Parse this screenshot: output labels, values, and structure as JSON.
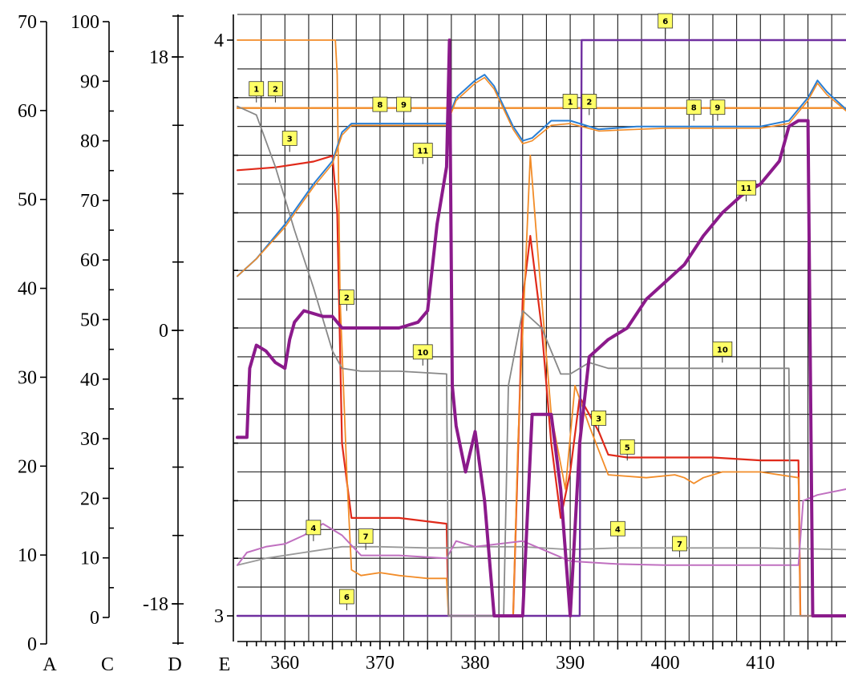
{
  "chart_data": {
    "type": "line",
    "x_label": "",
    "x_ticks": [
      "360",
      "370",
      "380",
      "390",
      "400",
      "410"
    ],
    "xlim": [
      355,
      419
    ],
    "grid": true,
    "axes": [
      {
        "id": "A",
        "label": "A",
        "ticks": [
          "0",
          "10",
          "20",
          "30",
          "40",
          "50",
          "60",
          "70"
        ],
        "range": [
          0,
          70
        ]
      },
      {
        "id": "C",
        "label": "C",
        "ticks": [
          "0",
          "10",
          "20",
          "30",
          "40",
          "50",
          "60",
          "70",
          "80",
          "90",
          "100"
        ],
        "range": [
          0,
          100
        ]
      },
      {
        "id": "D",
        "label": "D",
        "ticks": [
          "-18",
          "0",
          "18"
        ],
        "range": [
          -18,
          18
        ]
      },
      {
        "id": "E",
        "label": "E",
        "ticks": [
          "3",
          "4"
        ],
        "range": [
          3,
          4
        ]
      }
    ],
    "series": [
      {
        "name": "1",
        "color": "#f28c28",
        "width": 2.2,
        "points": [
          [
            355,
            0.882
          ],
          [
            413,
            0.882
          ],
          [
            419,
            0.882
          ]
        ]
      },
      {
        "name": "2",
        "color": "#f28c28",
        "width": 2.2,
        "points": [
          [
            355,
            0.882
          ],
          [
            419,
            0.882
          ]
        ]
      },
      {
        "name": "3",
        "color": "#e02a1a",
        "width": 2.2,
        "points": [
          [
            355,
            0.774
          ],
          [
            359,
            0.779
          ],
          [
            363,
            0.789
          ],
          [
            365,
            0.799
          ],
          [
            365.5,
            0.7
          ],
          [
            366,
            0.3
          ],
          [
            367,
            0.17
          ],
          [
            372,
            0.17
          ],
          [
            377,
            0.16
          ],
          [
            377.2,
            0.0
          ],
          [
            384,
            0.0
          ],
          [
            385,
            0.55
          ],
          [
            385.8,
            0.66
          ],
          [
            387,
            0.5
          ],
          [
            388,
            0.3
          ],
          [
            389,
            0.17
          ],
          [
            390,
            0.25
          ],
          [
            391,
            0.38
          ],
          [
            393,
            0.32
          ],
          [
            394,
            0.28
          ],
          [
            396,
            0.275
          ],
          [
            400,
            0.275
          ],
          [
            405,
            0.275
          ],
          [
            410,
            0.27
          ],
          [
            414,
            0.27
          ],
          [
            414.2,
            0.0
          ],
          [
            419,
            0.0
          ]
        ]
      },
      {
        "name": "4",
        "color": "#999999",
        "width": 1.8,
        "points": [
          [
            355,
            0.088
          ],
          [
            358,
            0.1
          ],
          [
            362,
            0.11
          ],
          [
            366,
            0.12
          ],
          [
            370,
            0.12
          ],
          [
            375,
            0.118
          ],
          [
            377,
            0.118
          ],
          [
            380,
            0.12
          ],
          [
            385,
            0.12
          ],
          [
            390,
            0.115
          ],
          [
            395,
            0.118
          ],
          [
            400,
            0.118
          ],
          [
            410,
            0.118
          ],
          [
            419,
            0.115
          ]
        ]
      },
      {
        "name": "5",
        "color": "#f28c28",
        "width": 1.8,
        "points": [
          [
            355,
            1.0
          ],
          [
            364,
            1.0
          ],
          [
            365.3,
            1.0
          ],
          [
            365.5,
            0.94
          ],
          [
            365.8,
            0.55
          ],
          [
            366.5,
            0.25
          ],
          [
            367,
            0.08
          ],
          [
            368,
            0.07
          ],
          [
            370,
            0.075
          ],
          [
            372,
            0.07
          ],
          [
            375,
            0.065
          ],
          [
            377,
            0.065
          ],
          [
            377.2,
            0.0
          ],
          [
            384,
            0.0
          ],
          [
            384.5,
            0.3
          ],
          [
            385.8,
            0.8
          ],
          [
            386.5,
            0.65
          ],
          [
            388,
            0.35
          ],
          [
            389.5,
            0.22
          ],
          [
            390.5,
            0.4
          ],
          [
            392,
            0.33
          ],
          [
            394,
            0.245
          ],
          [
            398,
            0.24
          ],
          [
            401,
            0.245
          ],
          [
            402,
            0.24
          ],
          [
            403,
            0.23
          ],
          [
            404,
            0.24
          ],
          [
            406,
            0.25
          ],
          [
            410,
            0.25
          ],
          [
            414,
            0.24
          ],
          [
            414.2,
            0.0
          ],
          [
            419,
            0.0
          ]
        ]
      },
      {
        "name": "6",
        "color": "#7030a0",
        "width": 2.4,
        "points": [
          [
            355,
            0.0
          ],
          [
            391,
            0.0
          ],
          [
            391.2,
            1.0
          ],
          [
            419,
            1.0
          ]
        ]
      },
      {
        "name": "7",
        "color": "#c070c0",
        "width": 2.0,
        "points": [
          [
            355,
            0.088
          ],
          [
            356,
            0.11
          ],
          [
            358,
            0.12
          ],
          [
            360,
            0.125
          ],
          [
            362,
            0.14
          ],
          [
            364,
            0.16
          ],
          [
            366,
            0.14
          ],
          [
            368,
            0.105
          ],
          [
            372,
            0.105
          ],
          [
            377,
            0.1
          ],
          [
            378,
            0.13
          ],
          [
            380,
            0.12
          ],
          [
            385,
            0.13
          ],
          [
            390,
            0.095
          ],
          [
            395,
            0.09
          ],
          [
            400,
            0.088
          ],
          [
            405,
            0.088
          ],
          [
            410,
            0.088
          ],
          [
            414,
            0.088
          ],
          [
            414.5,
            0.2
          ],
          [
            416,
            0.21
          ],
          [
            419,
            0.22
          ]
        ]
      },
      {
        "name": "8",
        "color": "#2a7fd4",
        "width": 2.0,
        "points": [
          [
            355,
            0.59
          ],
          [
            357,
            0.62
          ],
          [
            360,
            0.68
          ],
          [
            363,
            0.75
          ],
          [
            365,
            0.79
          ],
          [
            366,
            0.84
          ],
          [
            367,
            0.855
          ],
          [
            372,
            0.855
          ],
          [
            377,
            0.855
          ],
          [
            378,
            0.9
          ],
          [
            380,
            0.93
          ],
          [
            381,
            0.94
          ],
          [
            382,
            0.92
          ],
          [
            384,
            0.85
          ],
          [
            385,
            0.825
          ],
          [
            386,
            0.83
          ],
          [
            388,
            0.86
          ],
          [
            390,
            0.86
          ],
          [
            393,
            0.845
          ],
          [
            397,
            0.85
          ],
          [
            400,
            0.85
          ],
          [
            405,
            0.85
          ],
          [
            410,
            0.85
          ],
          [
            413,
            0.86
          ],
          [
            415,
            0.9
          ],
          [
            416,
            0.93
          ],
          [
            417,
            0.91
          ],
          [
            419,
            0.88
          ]
        ]
      },
      {
        "name": "9",
        "color": "#f28c28",
        "width": 1.6,
        "points": [
          [
            355,
            0.59
          ],
          [
            357,
            0.62
          ],
          [
            360,
            0.675
          ],
          [
            363,
            0.745
          ],
          [
            365,
            0.785
          ],
          [
            366,
            0.835
          ],
          [
            367,
            0.852
          ],
          [
            372,
            0.852
          ],
          [
            377,
            0.852
          ],
          [
            378,
            0.895
          ],
          [
            380,
            0.925
          ],
          [
            381,
            0.935
          ],
          [
            382,
            0.915
          ],
          [
            384,
            0.845
          ],
          [
            385,
            0.82
          ],
          [
            386,
            0.825
          ],
          [
            388,
            0.852
          ],
          [
            390,
            0.855
          ],
          [
            393,
            0.842
          ],
          [
            397,
            0.845
          ],
          [
            400,
            0.847
          ],
          [
            405,
            0.847
          ],
          [
            410,
            0.847
          ],
          [
            413,
            0.855
          ],
          [
            415,
            0.895
          ],
          [
            416,
            0.925
          ],
          [
            417,
            0.905
          ],
          [
            419,
            0.877
          ]
        ]
      },
      {
        "name": "10",
        "color": "#888888",
        "width": 1.8,
        "points": [
          [
            355,
            0.885
          ],
          [
            357,
            0.87
          ],
          [
            359,
            0.78
          ],
          [
            361,
            0.67
          ],
          [
            363,
            0.57
          ],
          [
            365,
            0.46
          ],
          [
            366,
            0.43
          ],
          [
            368,
            0.425
          ],
          [
            372,
            0.425
          ],
          [
            377,
            0.42
          ],
          [
            377.2,
            0.0
          ],
          [
            383,
            0.0
          ],
          [
            383.5,
            0.4
          ],
          [
            385,
            0.53
          ],
          [
            387,
            0.5
          ],
          [
            389,
            0.42
          ],
          [
            390,
            0.42
          ],
          [
            392,
            0.44
          ],
          [
            394,
            0.43
          ],
          [
            400,
            0.43
          ],
          [
            405,
            0.43
          ],
          [
            410,
            0.43
          ],
          [
            413,
            0.43
          ],
          [
            413.2,
            0.0
          ],
          [
            419,
            0.0
          ]
        ]
      },
      {
        "name": "11",
        "color": "#8b1a8b",
        "width": 4.0,
        "points": [
          [
            355,
            0.31
          ],
          [
            356,
            0.31
          ],
          [
            356.3,
            0.43
          ],
          [
            357,
            0.47
          ],
          [
            358,
            0.46
          ],
          [
            359,
            0.44
          ],
          [
            360,
            0.43
          ],
          [
            360.5,
            0.48
          ],
          [
            361,
            0.51
          ],
          [
            362,
            0.53
          ],
          [
            364,
            0.52
          ],
          [
            365,
            0.52
          ],
          [
            366,
            0.5
          ],
          [
            368,
            0.5
          ],
          [
            372,
            0.5
          ],
          [
            374,
            0.51
          ],
          [
            375,
            0.53
          ],
          [
            376,
            0.68
          ],
          [
            377,
            0.78
          ],
          [
            377.3,
            1.0
          ],
          [
            377.6,
            0.4
          ],
          [
            378,
            0.33
          ],
          [
            379,
            0.25
          ],
          [
            380,
            0.32
          ],
          [
            381,
            0.2
          ],
          [
            382,
            0.0
          ],
          [
            385,
            0.0
          ],
          [
            386,
            0.35
          ],
          [
            388,
            0.35
          ],
          [
            389,
            0.22
          ],
          [
            390,
            0.0
          ],
          [
            391,
            0.3
          ],
          [
            392,
            0.45
          ],
          [
            394,
            0.48
          ],
          [
            396,
            0.5
          ],
          [
            398,
            0.55
          ],
          [
            400,
            0.58
          ],
          [
            402,
            0.61
          ],
          [
            404,
            0.66
          ],
          [
            406,
            0.7
          ],
          [
            408,
            0.73
          ],
          [
            410,
            0.75
          ],
          [
            412,
            0.79
          ],
          [
            413,
            0.85
          ],
          [
            414,
            0.86
          ],
          [
            415,
            0.86
          ],
          [
            415.5,
            0.0
          ],
          [
            419,
            0.0
          ]
        ]
      }
    ],
    "tags": [
      {
        "text": "1",
        "x": 357,
        "y": 0.882
      },
      {
        "text": "2",
        "x": 359,
        "y": 0.882
      },
      {
        "text": "3",
        "x": 360.5,
        "y": 0.796
      },
      {
        "text": "8",
        "x": 370,
        "y": 0.855
      },
      {
        "text": "9",
        "x": 372.5,
        "y": 0.855
      },
      {
        "text": "11",
        "x": 374.5,
        "y": 0.775
      },
      {
        "text": "1",
        "x": 390,
        "y": 0.86
      },
      {
        "text": "2",
        "x": 392,
        "y": 0.86
      },
      {
        "text": "8",
        "x": 403,
        "y": 0.85
      },
      {
        "text": "9",
        "x": 405.5,
        "y": 0.85
      },
      {
        "text": "11",
        "x": 408.5,
        "y": 0.71
      },
      {
        "text": "6",
        "x": 400,
        "y": 1.0
      },
      {
        "text": "2",
        "x": 366.5,
        "y": 0.52
      },
      {
        "text": "10",
        "x": 374.5,
        "y": 0.425
      },
      {
        "text": "10",
        "x": 406,
        "y": 0.43
      },
      {
        "text": "3",
        "x": 393,
        "y": 0.31
      },
      {
        "text": "5",
        "x": 396,
        "y": 0.26
      },
      {
        "text": "4",
        "x": 363,
        "y": 0.12
      },
      {
        "text": "7",
        "x": 368.5,
        "y": 0.105
      },
      {
        "text": "4",
        "x": 395,
        "y": 0.118
      },
      {
        "text": "7",
        "x": 401.5,
        "y": 0.092
      },
      {
        "text": "6",
        "x": 366.5,
        "y": 0.0
      }
    ]
  }
}
